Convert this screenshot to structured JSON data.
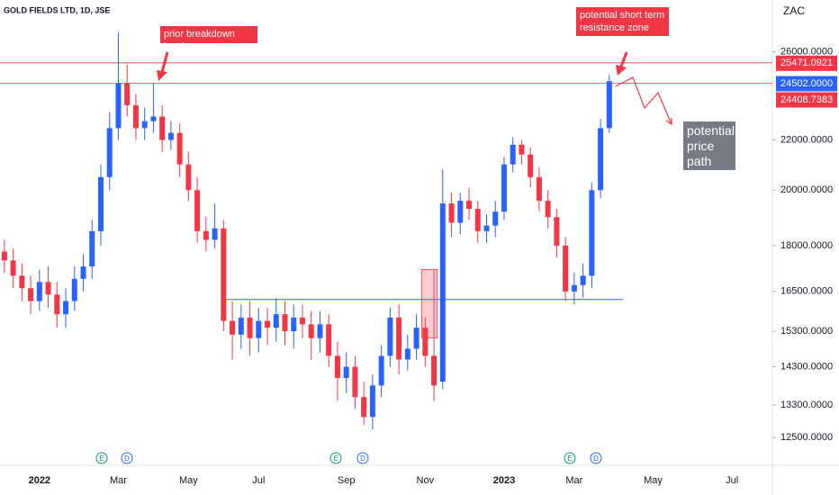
{
  "chart_data": {
    "type": "candlestick",
    "title": "GOLD FIELDS LTD, 1D, JSE",
    "currency": "ZAC",
    "log_scale": true,
    "up_color": "#2962ff",
    "down_color": "#f23645",
    "ylim": [
      11900,
      28700
    ],
    "yticks": [
      {
        "value": 12500,
        "label": "12500.0000"
      },
      {
        "value": 13300,
        "label": "13300.0000"
      },
      {
        "value": 14300,
        "label": "14300.0000"
      },
      {
        "value": 15300,
        "label": "15300.0000"
      },
      {
        "value": 16500,
        "label": "16500.0000"
      },
      {
        "value": 18000,
        "label": "18000.0000"
      },
      {
        "value": 20000,
        "label": "20000.0000"
      },
      {
        "value": 22000,
        "label": "22000.0000"
      },
      {
        "value": 26000,
        "label": "26000.0000"
      }
    ],
    "categories": [
      null,
      null,
      null,
      null,
      "2022",
      null,
      null,
      null,
      null,
      null,
      null,
      null,
      null,
      "Mar",
      null,
      null,
      null,
      null,
      null,
      null,
      null,
      "May",
      null,
      null,
      null,
      null,
      null,
      null,
      null,
      "Jul",
      null,
      null,
      null,
      null,
      null,
      null,
      null,
      null,
      null,
      "Sep",
      null,
      null,
      null,
      null,
      null,
      null,
      null,
      null,
      "Nov",
      null,
      null,
      null,
      null,
      null,
      null,
      null,
      null,
      "2023",
      null,
      null,
      null,
      null,
      null,
      null,
      null,
      "Mar",
      null,
      null,
      null,
      null,
      null,
      null,
      null,
      null,
      "May",
      null,
      null,
      null,
      null,
      null,
      null,
      null,
      null,
      "Jul",
      null,
      null,
      null,
      null
    ],
    "open": [
      17800,
      17500,
      17000,
      16600,
      16200,
      16800,
      16400,
      15800,
      16200,
      16900,
      17300,
      18500,
      20500,
      22500,
      24500,
      23500,
      22500,
      22800,
      23000,
      22000,
      22300,
      21000,
      20000,
      18500,
      18200,
      18600,
      15600,
      15200,
      15700,
      15100,
      15600,
      15400,
      15800,
      15300,
      15700,
      15500,
      15100,
      15500,
      14600,
      14000,
      14300,
      13500,
      13000,
      13800,
      14600,
      15700,
      14500,
      14800,
      15400,
      14600,
      13900,
      19500,
      18800,
      19600,
      19300,
      18500,
      18700,
      19200,
      21000,
      21800,
      21400,
      20500,
      19600,
      19000,
      18000,
      16500,
      16700,
      17000,
      20000,
      22500,
      null,
      null,
      null,
      null,
      null,
      null,
      null,
      null,
      null,
      null,
      null,
      null,
      null,
      null,
      null,
      null,
      null,
      null
    ],
    "high": [
      18200,
      17900,
      17400,
      17000,
      17200,
      17300,
      16800,
      16600,
      17300,
      17700,
      18900,
      21000,
      23200,
      27000,
      25400,
      24000,
      23400,
      24500,
      23500,
      22800,
      22700,
      21500,
      20500,
      19000,
      19500,
      18900,
      16200,
      16100,
      16200,
      16000,
      16000,
      16300,
      16200,
      16100,
      16100,
      15900,
      15900,
      15800,
      15000,
      14700,
      14600,
      13900,
      14100,
      14900,
      16000,
      16100,
      15200,
      15800,
      15700,
      17200,
      20800,
      19900,
      19900,
      20100,
      19600,
      19100,
      19600,
      21300,
      22100,
      22000,
      21700,
      20900,
      20000,
      19300,
      18300,
      17100,
      17400,
      20300,
      22900,
      24900,
      null,
      null,
      null,
      null,
      null,
      null,
      null,
      null,
      null,
      null,
      null,
      null,
      null,
      null,
      null,
      null,
      null,
      null
    ],
    "low": [
      17100,
      16600,
      16200,
      15800,
      15900,
      16000,
      15400,
      15400,
      15900,
      16500,
      16900,
      18000,
      20000,
      22000,
      23000,
      22000,
      22000,
      22300,
      21500,
      21600,
      20500,
      19600,
      18100,
      17800,
      17900,
      15300,
      14500,
      14800,
      14600,
      14700,
      14900,
      15000,
      14900,
      14800,
      15100,
      14500,
      14700,
      14300,
      13400,
      13600,
      13200,
      12800,
      12700,
      13500,
      14300,
      14100,
      14200,
      14500,
      14300,
      13400,
      13700,
      18300,
      18400,
      18900,
      18100,
      18100,
      18300,
      18900,
      20700,
      21000,
      20100,
      19200,
      18600,
      17600,
      16200,
      16100,
      16300,
      16600,
      19700,
      22300,
      null,
      null,
      null,
      null,
      null,
      null,
      null,
      null,
      null,
      null,
      null,
      null,
      null,
      null,
      null,
      null,
      null,
      null
    ],
    "close": [
      17500,
      17000,
      16600,
      16200,
      16800,
      16400,
      15800,
      16200,
      16900,
      17300,
      18500,
      20500,
      22500,
      24500,
      23500,
      22500,
      22800,
      23000,
      22000,
      22300,
      21000,
      20000,
      18500,
      18200,
      18600,
      15600,
      15200,
      15700,
      15100,
      15600,
      15400,
      15800,
      15300,
      15700,
      15500,
      15100,
      15500,
      14600,
      14000,
      14300,
      13500,
      13000,
      13800,
      14600,
      15700,
      14500,
      14800,
      15400,
      14600,
      13800,
      19500,
      18800,
      19600,
      19300,
      18500,
      18700,
      19200,
      21000,
      21800,
      21400,
      20500,
      19600,
      19000,
      18000,
      16500,
      16700,
      17000,
      20000,
      22500,
      24600,
      null,
      null,
      null,
      null,
      null,
      null,
      null,
      null,
      null,
      null,
      null,
      null,
      null,
      null,
      null,
      null,
      null,
      null
    ],
    "price_labels": [
      {
        "value": 25471.0921,
        "label": "25471.0921",
        "color": "#f23645"
      },
      {
        "value": 24502,
        "label": "24502.0000",
        "color": "#2962ff"
      },
      {
        "value": 24408.7383,
        "label": "24408.7383",
        "color": "#f23645"
      }
    ],
    "support": 16250,
    "zone": {
      "from": 15100,
      "to": 17200
    },
    "events": [
      "E",
      "D",
      "E",
      "D",
      "E",
      "D"
    ],
    "annotations": [
      "prior breakdown level",
      "potential short term resistance zone",
      "potential price path"
    ]
  }
}
